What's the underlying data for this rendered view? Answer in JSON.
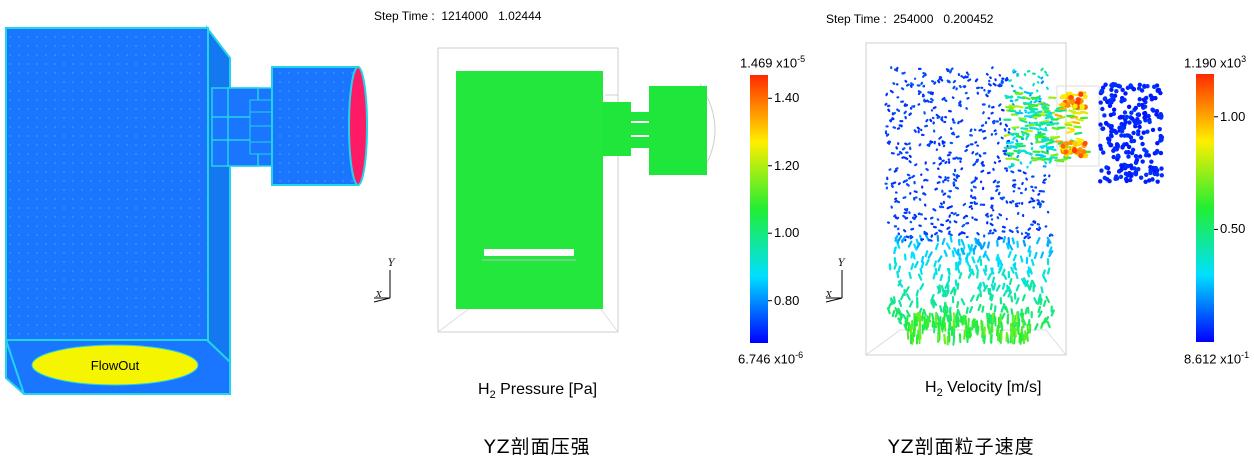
{
  "model3d": {
    "flowout_label": "FlowOut",
    "colors": {
      "box": "#1a75ff",
      "mesh": "#22d4e8",
      "flowout": "#f5f500",
      "inlet": "#ff1a66"
    }
  },
  "pressure": {
    "step_time": "Step Time :  1214000   1.02444",
    "colorbar": {
      "max_mant": "1.469",
      "max_exp": "-5",
      "min_mant": "6.746",
      "min_exp": "-6",
      "ticks": [
        "1.40",
        "1.20",
        "1.00",
        "0.80"
      ],
      "tick_values": [
        1.4,
        1.2,
        1.0,
        0.8
      ],
      "range": [
        0.6746,
        1.469
      ]
    },
    "title_pre": "H",
    "title_sub": "2",
    "title_post": " Pressure [Pa]",
    "caption": "YZ剖面压强",
    "axis_y": "Y",
    "axis_x": "X"
  },
  "velocity": {
    "step_time": "Step Time :  254000   0.200452",
    "colorbar": {
      "max_mant": "1.190",
      "max_exp": "3",
      "min_mant": "8.612",
      "min_exp": "-1",
      "ticks": [
        "1.00",
        "0.50"
      ],
      "tick_values": [
        1.0,
        0.5
      ],
      "range": [
        0.0,
        1.19
      ]
    },
    "title_pre": "H",
    "title_sub": "2",
    "title_post": " Velocity [m/s]",
    "caption": "YZ剖面粒子速度",
    "axis_y": "Y",
    "axis_x": "X"
  }
}
